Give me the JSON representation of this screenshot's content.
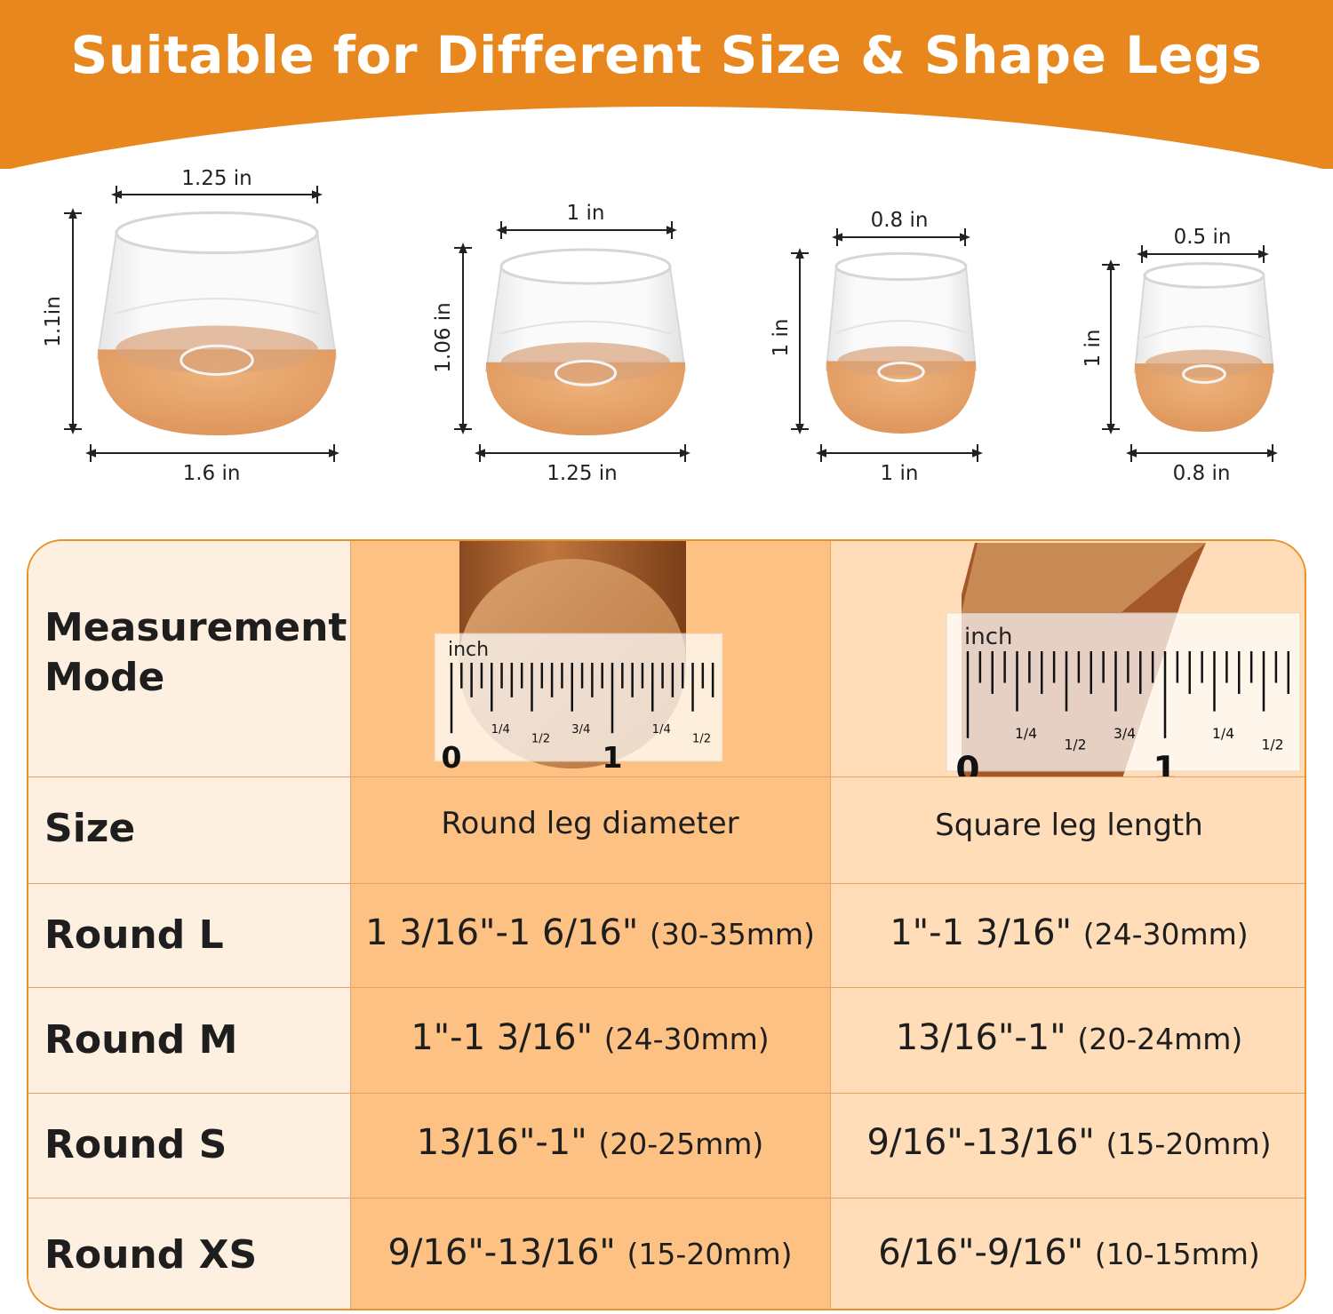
{
  "title": "Suitable for Different Size & Shape Legs",
  "colors": {
    "brand_orange": "#E8871E",
    "table_border": "#E8922E",
    "col_label_bg": "#FEF0E1",
    "col_round_bg": "#FDC283",
    "col_square_bg": "#FEDDB8",
    "cork": "#E3A068"
  },
  "cups": [
    {
      "top": "1.25 in",
      "height": "1.1in",
      "bottom": "1.6 in"
    },
    {
      "top": "1 in",
      "height": "1.06 in",
      "bottom": "1.25 in"
    },
    {
      "top": "0.8 in",
      "height": "1 in",
      "bottom": "1 in"
    },
    {
      "top": "0.5 in",
      "height": "1 in",
      "bottom": "0.8 in"
    }
  ],
  "table": {
    "measurement_label_1": "Measurement",
    "measurement_label_2": "Mode",
    "size_label": "Size",
    "round_header": "Round leg diameter",
    "square_header": "Square leg length",
    "ruler": {
      "unit": "inch",
      "labels": [
        "0",
        "1/4",
        "1/2",
        "3/4",
        "1",
        "1/4",
        "1/2"
      ]
    },
    "rows": [
      {
        "size": "Round L",
        "round": "1 3/16\"-1 6/16\"",
        "round_mm": "(30-35mm)",
        "square": "1\"-1 3/16\"",
        "square_mm": "(24-30mm)"
      },
      {
        "size": "Round M",
        "round": "1\"-1 3/16\"",
        "round_mm": "(24-30mm)",
        "square": "13/16\"-1\"",
        "square_mm": "(20-24mm)"
      },
      {
        "size": "Round S",
        "round": "13/16\"-1\"",
        "round_mm": "(20-25mm)",
        "square": "9/16\"-13/16\"",
        "square_mm": "(15-20mm)"
      },
      {
        "size": "Round XS",
        "round": "9/16\"-13/16\"",
        "round_mm": "(15-20mm)",
        "square": "6/16\"-9/16\"",
        "square_mm": "(10-15mm)"
      }
    ]
  }
}
